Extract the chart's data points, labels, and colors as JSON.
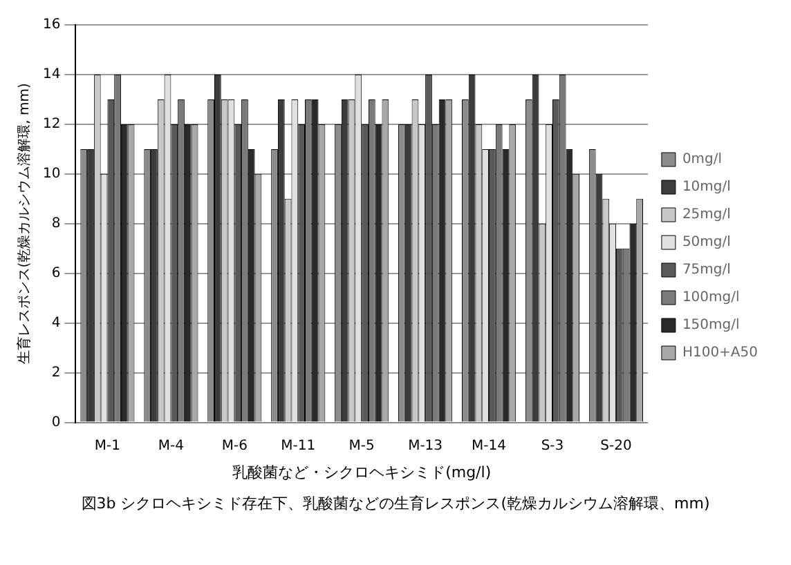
{
  "chart_data": {
    "type": "bar",
    "xlabel": "乳酸菌など・シクロヘキシミド(mg/l)",
    "ylabel": "生育レスポンス(乾燥カルシウム溶解環, mm)",
    "categories": [
      "M-1",
      "M-4",
      "M-6",
      "M-11",
      "M-5",
      "M-13",
      "M-14",
      "S-3",
      "S-20"
    ],
    "series": [
      {
        "name": "0mg/l",
        "color": "#8c8c8c",
        "values": [
          11,
          11,
          13,
          11,
          12,
          12,
          13,
          13,
          11
        ]
      },
      {
        "name": "10mg/l",
        "color": "#3c3c3c",
        "values": [
          11,
          11,
          14,
          13,
          13,
          12,
          14,
          14,
          10
        ]
      },
      {
        "name": "25mg/l",
        "color": "#c8c8c8",
        "values": [
          14,
          13,
          13,
          9,
          13,
          13,
          12,
          8,
          9
        ]
      },
      {
        "name": "50mg/l",
        "color": "#e0e0e0",
        "values": [
          10,
          14,
          13,
          13,
          14,
          12,
          11,
          12,
          8
        ]
      },
      {
        "name": "75mg/l",
        "color": "#595959",
        "values": [
          13,
          12,
          12,
          12,
          12,
          14,
          11,
          13,
          7
        ]
      },
      {
        "name": "100mg/l",
        "color": "#7a7a7a",
        "values": [
          14,
          13,
          13,
          13,
          13,
          12,
          12,
          14,
          7
        ]
      },
      {
        "name": "150mg/l",
        "color": "#2a2a2a",
        "values": [
          12,
          12,
          11,
          13,
          12,
          13,
          11,
          11,
          8
        ]
      },
      {
        "name": "H100+A50",
        "color": "#a8a8a8",
        "values": [
          12,
          12,
          10,
          12,
          13,
          13,
          12,
          10,
          9
        ]
      }
    ],
    "ylim": [
      0,
      16
    ],
    "yticks": [
      0,
      2,
      4,
      6,
      8,
      10,
      12,
      14,
      16
    ],
    "grid": "y",
    "legend": "right",
    "annotations": [
      "図3b シクロヘキシミド存在下、乳酸菌などの生育レスポンス(乾燥カルシウム溶解環、mm)"
    ]
  }
}
